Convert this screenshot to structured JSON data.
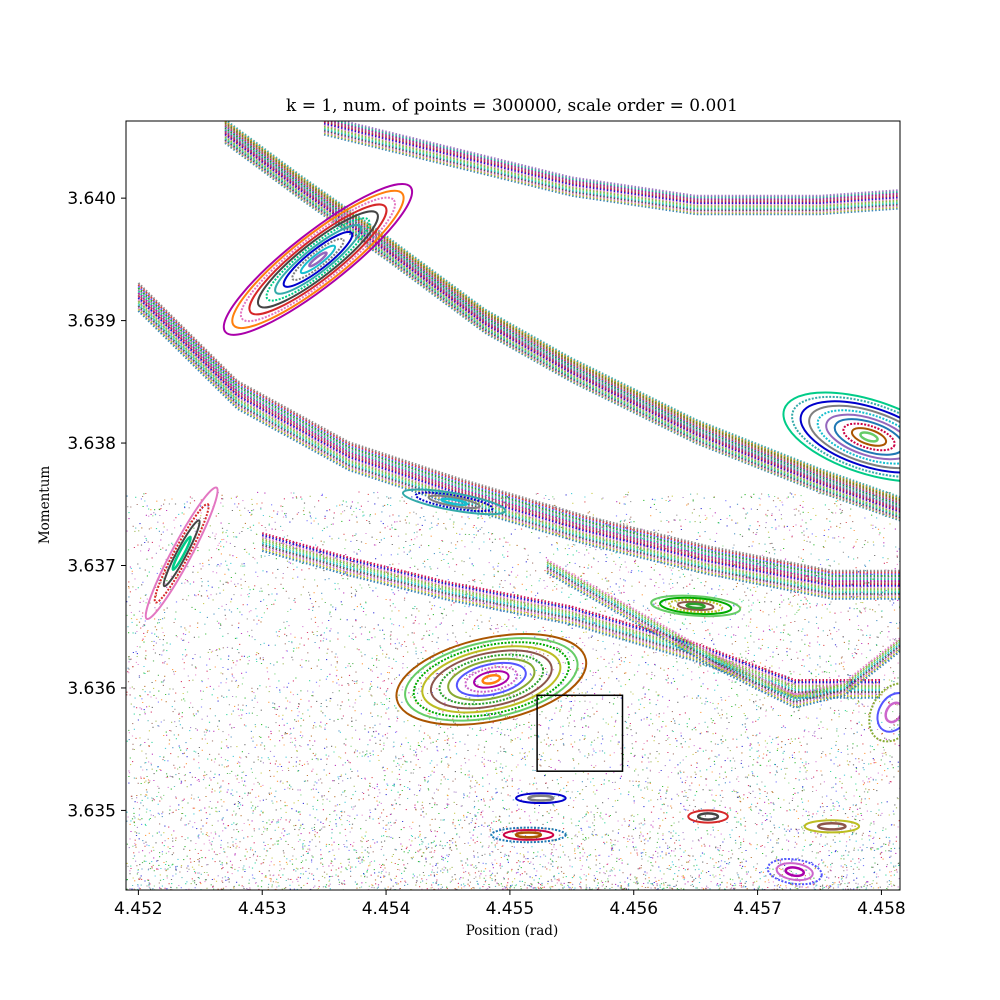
{
  "chart_data": {
    "type": "scatter",
    "title": "k = 1, num. of  points = 300000, scale order = 0.001",
    "xlabel": "Position (rad)",
    "ylabel": "Momentum",
    "xlim": [
      4.4519,
      4.45815
    ],
    "ylim": [
      3.63435,
      3.64063
    ],
    "x_ticks": [
      {
        "value": 4.452,
        "label": "4.452"
      },
      {
        "value": 4.453,
        "label": "4.453"
      },
      {
        "value": 4.454,
        "label": "4.454"
      },
      {
        "value": 4.455,
        "label": "4.455"
      },
      {
        "value": 4.456,
        "label": "4.456"
      },
      {
        "value": 4.457,
        "label": "4.457"
      },
      {
        "value": 4.458,
        "label": "4.458"
      }
    ],
    "y_ticks": [
      {
        "value": 3.635,
        "label": "3.635"
      },
      {
        "value": 3.636,
        "label": "3.636"
      },
      {
        "value": 3.637,
        "label": "3.637"
      },
      {
        "value": 3.638,
        "label": "3.638"
      },
      {
        "value": 3.639,
        "label": "3.639"
      },
      {
        "value": 3.64,
        "label": "3.640"
      }
    ],
    "grid": false,
    "legend": "none",
    "highlight_box": {
      "x": [
        4.45522,
        4.45591
      ],
      "y": [
        3.63532,
        3.63594
      ]
    },
    "islands": [
      {
        "cx": 4.45345,
        "cy": 3.6395,
        "rx": 0.00095,
        "ry": 0.00022,
        "angle": 38,
        "rings": 11
      },
      {
        "cx": 4.45485,
        "cy": 3.63607,
        "rx": 0.00078,
        "ry": 0.00034,
        "angle": 12,
        "rings": 11
      },
      {
        "cx": 4.4579,
        "cy": 3.63805,
        "rx": 0.00072,
        "ry": 0.0003,
        "angle": -18,
        "rings": 10
      },
      {
        "cx": 4.45235,
        "cy": 3.6371,
        "rx": 0.0006,
        "ry": 8e-05,
        "angle": 62,
        "rings": 4
      },
      {
        "cx": 4.4565,
        "cy": 3.63667,
        "rx": 0.00036,
        "ry": 8e-05,
        "angle": -4,
        "rings": 5
      },
      {
        "cx": 4.45455,
        "cy": 3.63752,
        "rx": 0.00042,
        "ry": 7e-05,
        "angle": -10,
        "rings": 4
      },
      {
        "cx": 4.4573,
        "cy": 3.6345,
        "rx": 0.00022,
        "ry": 0.0001,
        "angle": -8,
        "rings": 3
      },
      {
        "cx": 4.45515,
        "cy": 3.6348,
        "rx": 0.0003,
        "ry": 6e-05,
        "angle": 0,
        "rings": 3
      },
      {
        "cx": 4.4566,
        "cy": 3.63495,
        "rx": 0.00016,
        "ry": 5e-05,
        "angle": 0,
        "rings": 2
      },
      {
        "cx": 4.4576,
        "cy": 3.63487,
        "rx": 0.00022,
        "ry": 5e-05,
        "angle": 0,
        "rings": 2
      },
      {
        "cx": 4.45525,
        "cy": 3.6351,
        "rx": 0.0002,
        "ry": 4e-05,
        "angle": 0,
        "rings": 2
      },
      {
        "cx": 4.4581,
        "cy": 3.6358,
        "rx": 0.00025,
        "ry": 0.00018,
        "angle": 60,
        "rings": 3
      }
    ],
    "bands": [
      {
        "x": [
          4.4527,
          4.4533,
          4.454,
          4.4548,
          4.4555,
          4.4565,
          4.4575,
          4.4582
        ],
        "y": [
          3.64055,
          3.6401,
          3.6396,
          3.639,
          3.6386,
          3.6381,
          3.6377,
          3.63745
        ],
        "spread": 0.0001,
        "count": 22
      },
      {
        "x": [
          4.4535,
          4.4545,
          4.4555,
          4.4565,
          4.4575,
          4.4582
        ],
        "y": [
          3.6406,
          3.64035,
          3.6401,
          3.63995,
          3.63995,
          3.64
        ],
        "spread": 8e-05,
        "count": 14
      },
      {
        "x": [
          4.452,
          4.4528,
          4.4537,
          4.4546,
          4.4556,
          4.4566,
          4.4576,
          4.4582
        ],
        "y": [
          3.6392,
          3.6384,
          3.6379,
          3.6376,
          3.6373,
          3.63705,
          3.63685,
          3.63685
        ],
        "spread": 0.00012,
        "count": 18
      },
      {
        "x": [
          4.453,
          4.4537,
          4.4545,
          4.4555,
          4.4565,
          4.4573,
          4.458
        ],
        "y": [
          3.6372,
          3.637,
          3.6368,
          3.6366,
          3.6363,
          3.636,
          3.636
        ],
        "spread": 8e-05,
        "count": 10
      },
      {
        "x": [
          4.4553,
          4.456,
          4.4567,
          4.4573,
          4.4577,
          4.4582
        ],
        "y": [
          3.637,
          3.6366,
          3.6362,
          3.6359,
          3.636,
          3.6364
        ],
        "spread": 6e-05,
        "count": 8
      }
    ],
    "chaotic_sea": {
      "x": [
        4.4519,
        4.4582
      ],
      "y": [
        3.63435,
        3.6376
      ],
      "count": 9000
    },
    "colors": [
      "#1f77b4",
      "#2ca02c",
      "#d62728",
      "#9467bd",
      "#8c564b",
      "#e377c2",
      "#17becf",
      "#bcbd22",
      "#ff7f0e",
      "#7f7f7f",
      "#00aa00",
      "#aa00aa",
      "#0000cc",
      "#66cc66",
      "#cc66cc",
      "#33aaaa",
      "#aa5500",
      "#5555ff",
      "#00cc88",
      "#cc0044",
      "#88aa33",
      "#444444"
    ]
  }
}
